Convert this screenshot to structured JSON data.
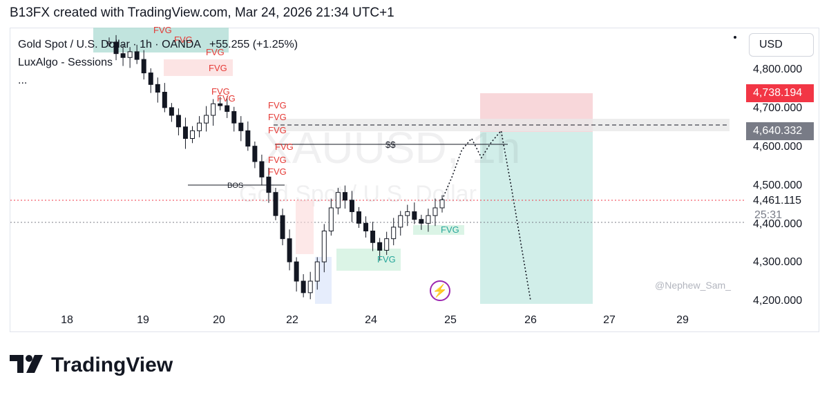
{
  "header": {
    "title": "B13FX created with TradingView.com, Mar 24, 2026 21:34 UTC+1"
  },
  "symbol": {
    "name": "Gold Spot / U.S. Dollar · 1h · OANDA",
    "change": "+55.255 (+1.25%)",
    "indicator": "LuxAlgo - Sessions",
    "more": "...",
    "watermark_ticker": "XAUUSD, 1h",
    "watermark_name": "Gold Spot / U.S. Dollar"
  },
  "currency_button": "USD",
  "price_tags": {
    "target": "4,738.194",
    "entry": "4,640.332",
    "last": "4,461.115",
    "countdown": "25:31"
  },
  "annotations": {
    "bos": "BOS",
    "liquidity": "$$",
    "fvg": "FVG",
    "author": "@Nephew_Sam_"
  },
  "brand": {
    "logo_text": "TradingView"
  },
  "colors": {
    "up": "#26a69a",
    "down": "#ef5350",
    "candle": "#131722",
    "target_zone": "#f8d7da",
    "stop_zone": "#d1eee9"
  },
  "chart_data": {
    "type": "candlestick",
    "title": "",
    "ylabel": "USD",
    "ylim": [
      4190,
      4880
    ],
    "y_ticks": [
      "4,200.000",
      "4,300.000",
      "4,400.000",
      "4,500.000",
      "4,600.000",
      "4,700.000",
      "4,800.000"
    ],
    "x_ticks": [
      "18",
      "19",
      "20",
      "22",
      "24",
      "25",
      "26",
      "27",
      "29"
    ],
    "close_path": [
      4870,
      4840,
      4830,
      4845,
      4825,
      4790,
      4760,
      4740,
      4700,
      4680,
      4650,
      4620,
      4640,
      4660,
      4680,
      4710,
      4705,
      4690,
      4660,
      4640,
      4600,
      4560,
      4520,
      4480,
      4420,
      4360,
      4300,
      4250,
      4220,
      4250,
      4300,
      4380,
      4440,
      4480,
      4460,
      4430,
      4400,
      4380,
      4350,
      4330,
      4360,
      4390,
      4420,
      4430,
      4410,
      4400,
      4420,
      4440,
      4461
    ],
    "projection": [
      4461,
      4520,
      4590,
      4620,
      4570,
      4610,
      4640,
      4500,
      4350,
      4200
    ],
    "levels": {
      "entry": 4640.332,
      "target": 4738.194,
      "last": 4461.115,
      "liquidity": 4603,
      "bos": 4500
    }
  }
}
